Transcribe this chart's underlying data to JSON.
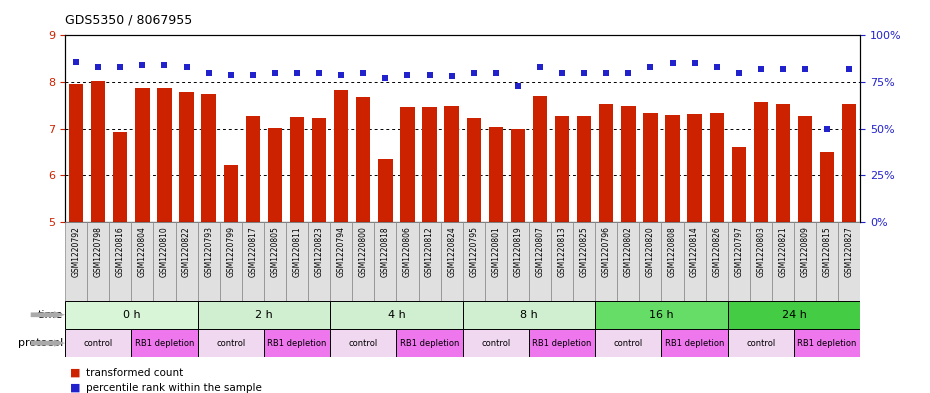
{
  "title": "GDS5350 / 8067955",
  "samples": [
    "GSM1220792",
    "GSM1220798",
    "GSM1220816",
    "GSM1220804",
    "GSM1220810",
    "GSM1220822",
    "GSM1220793",
    "GSM1220799",
    "GSM1220817",
    "GSM1220805",
    "GSM1220811",
    "GSM1220823",
    "GSM1220794",
    "GSM1220800",
    "GSM1220818",
    "GSM1220806",
    "GSM1220812",
    "GSM1220824",
    "GSM1220795",
    "GSM1220801",
    "GSM1220819",
    "GSM1220807",
    "GSM1220813",
    "GSM1220825",
    "GSM1220796",
    "GSM1220802",
    "GSM1220820",
    "GSM1220808",
    "GSM1220814",
    "GSM1220826",
    "GSM1220797",
    "GSM1220803",
    "GSM1220821",
    "GSM1220809",
    "GSM1220815",
    "GSM1220827"
  ],
  "bar_values": [
    7.95,
    8.02,
    6.93,
    7.88,
    7.88,
    7.78,
    7.75,
    6.22,
    7.28,
    7.02,
    7.26,
    7.22,
    7.82,
    7.68,
    6.35,
    7.47,
    7.47,
    7.48,
    7.22,
    7.03,
    7.0,
    7.71,
    7.28,
    7.28,
    7.52,
    7.48,
    7.33,
    7.3,
    7.32,
    7.34,
    6.6,
    7.57,
    7.52,
    7.27,
    6.5,
    7.52
  ],
  "percentile_values": [
    86,
    83,
    83,
    84,
    84,
    83,
    80,
    79,
    79,
    80,
    80,
    80,
    79,
    80,
    77,
    79,
    79,
    78,
    80,
    80,
    73,
    83,
    80,
    80,
    80,
    80,
    83,
    85,
    85,
    83,
    80,
    82,
    82,
    82,
    50,
    82
  ],
  "time_labels": [
    "0 h",
    "2 h",
    "4 h",
    "8 h",
    "16 h",
    "24 h"
  ],
  "time_starts": [
    0,
    6,
    12,
    18,
    24,
    30
  ],
  "time_spans": [
    6,
    6,
    6,
    6,
    6,
    6
  ],
  "time_colors": [
    "#dcf5dc",
    "#cceecc",
    "#cceecc",
    "#cceecc",
    "#66dd66",
    "#44cc44"
  ],
  "protocol_starts": [
    0,
    3,
    6,
    9,
    12,
    15,
    18,
    21,
    24,
    27,
    30,
    33
  ],
  "protocol_spans": [
    3,
    3,
    3,
    3,
    3,
    3,
    3,
    3,
    3,
    3,
    3,
    3
  ],
  "protocol_labels": [
    "control",
    "RB1 depletion",
    "control",
    "RB1 depletion",
    "control",
    "RB1 depletion",
    "control",
    "RB1 depletion",
    "control",
    "RB1 depletion",
    "control",
    "RB1 depletion"
  ],
  "protocol_colors": [
    "#f0d8f0",
    "#ee77ee",
    "#f0d8f0",
    "#ee77ee",
    "#f0d8f0",
    "#ee77ee",
    "#f0d8f0",
    "#ee77ee",
    "#f0d8f0",
    "#ee77ee",
    "#f0d8f0",
    "#ee77ee"
  ],
  "ylim_left": [
    5,
    9
  ],
  "ylim_right": [
    0,
    100
  ],
  "yticks_left": [
    5,
    6,
    7,
    8,
    9
  ],
  "yticks_right": [
    0,
    25,
    50,
    75,
    100
  ],
  "bar_color": "#cc2200",
  "dot_color": "#2222cc",
  "bg_color": "#ffffff",
  "tick_label_color_left": "#cc2200",
  "tick_label_color_right": "#2222cc",
  "xlabel_bg": "#e0e0e0",
  "arrow_color": "#aaaaaa"
}
